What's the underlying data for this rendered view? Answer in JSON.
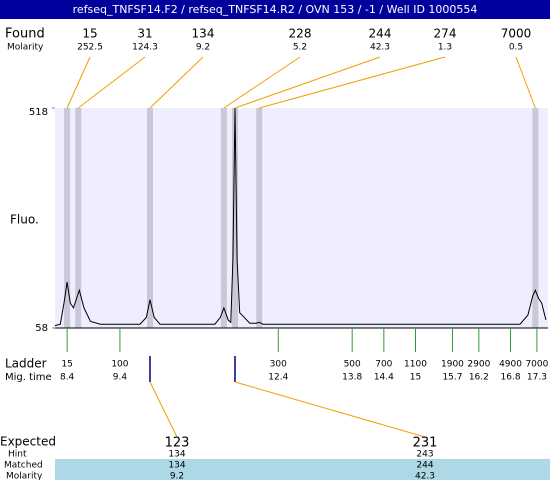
{
  "header": {
    "title": "refseq_TNFSF14.F2 / refseq_TNFSF14.R2 / OVN 153 / -1 / Well ID 1000554"
  },
  "found": {
    "label": "Found",
    "molarity_label": "Molarity",
    "peaks": [
      {
        "size": 15,
        "molarity": 252.5,
        "mig_time": 8.4
      },
      {
        "size": 31,
        "molarity": 124.3,
        "mig_time": 8.61
      },
      {
        "size": 134,
        "molarity": 9.2,
        "mig_time": 9.97
      },
      {
        "size": 228,
        "molarity": 5.2,
        "mig_time": 11.37
      },
      {
        "size": 244,
        "molarity": 42.3,
        "mig_time": 11.58
      },
      {
        "size": 274,
        "molarity": 1.3,
        "mig_time": 12.04
      },
      {
        "size": 7000,
        "molarity": 0.5,
        "mig_time": 17.27
      }
    ]
  },
  "plot": {
    "y_label": "Fluo.",
    "ylim": [
      58,
      518
    ],
    "yticks": [
      58,
      518
    ],
    "xlim": [
      8.17,
      17.51
    ],
    "trace": {
      "x": [
        8.17,
        8.27,
        8.34,
        8.4,
        8.46,
        8.52,
        8.63,
        8.72,
        8.84,
        9.03,
        9.78,
        9.9,
        9.97,
        10.05,
        10.16,
        11.2,
        11.3,
        11.37,
        11.45,
        11.5,
        11.54,
        11.58,
        11.62,
        11.67,
        11.86,
        11.98,
        12.04,
        12.11,
        16.98,
        17.13,
        17.22,
        17.27,
        17.33,
        17.39,
        17.47
      ],
      "y": [
        63,
        66,
        110,
        154,
        110,
        100,
        137,
        100,
        72,
        66,
        66,
        80,
        117,
        80,
        66,
        66,
        80,
        100,
        75,
        70,
        200,
        518,
        200,
        90,
        68,
        68,
        70,
        66,
        66,
        85,
        125,
        137,
        120,
        110,
        75
      ]
    }
  },
  "ladder": {
    "label": "Ladder",
    "time_label": "Mig. time",
    "sizes": [
      15,
      100,
      300,
      500,
      700,
      1100,
      1900,
      2900,
      4900,
      7000
    ],
    "mig_times": [
      8.4,
      9.4,
      12.4,
      13.8,
      14.4,
      15,
      15.7,
      16.2,
      16.8,
      17.3
    ]
  },
  "expected": {
    "label": "Expected",
    "hint_label": "Hint",
    "matched_label": "Matched",
    "molarity_label": "Molarity",
    "peaks": [
      {
        "size": 123,
        "hint": 134,
        "matched": 134,
        "molarity": 9.2,
        "mig_time": 9.97
      },
      {
        "size": 231,
        "hint": 243,
        "matched": 244,
        "molarity": 42.3,
        "mig_time": 11.58
      }
    ]
  }
}
